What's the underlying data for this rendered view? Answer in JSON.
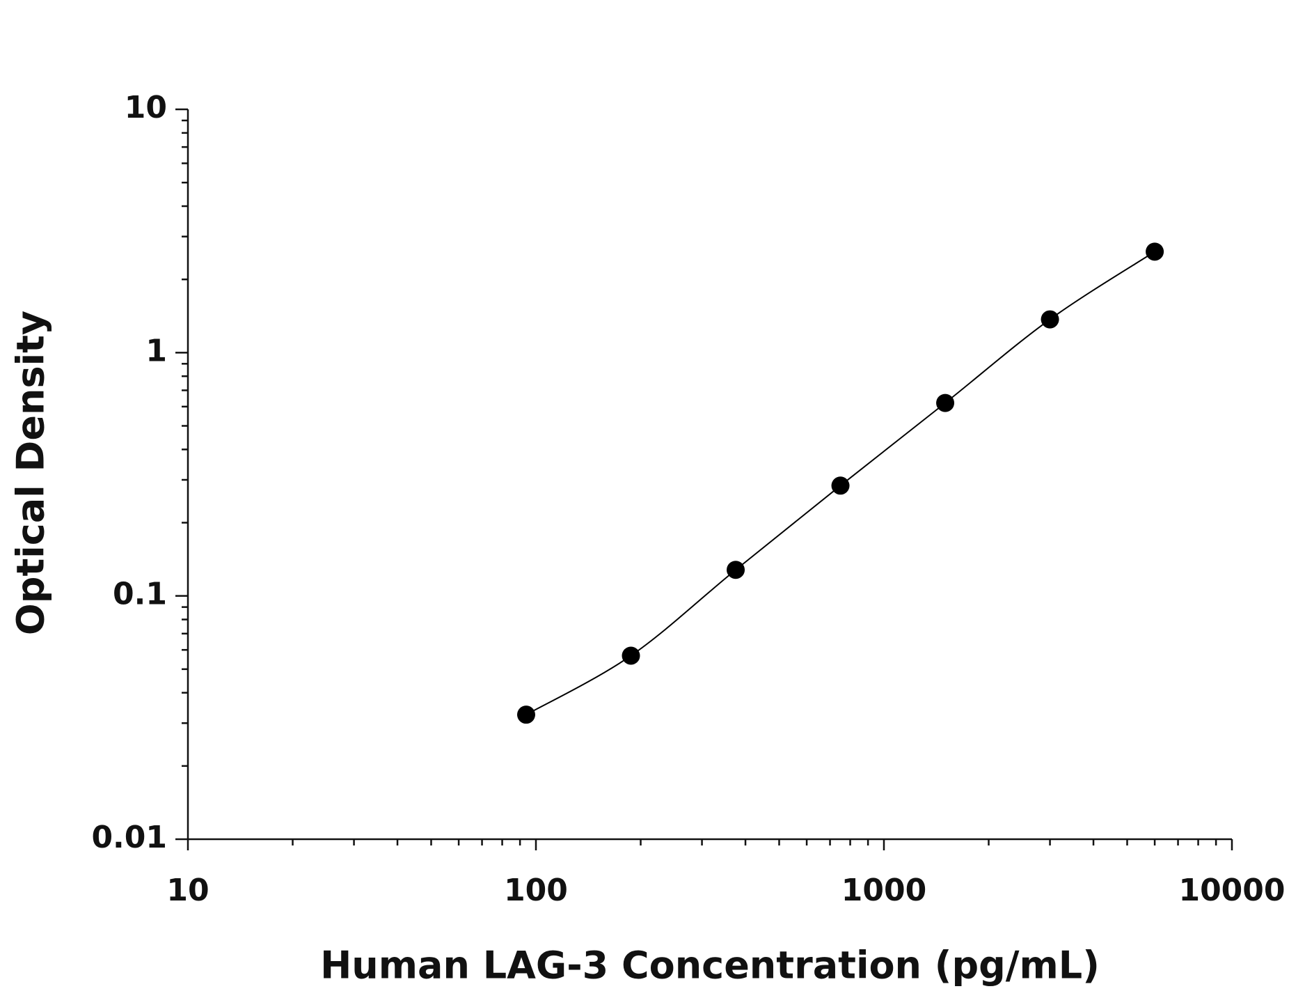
{
  "chart_data": {
    "type": "scatter",
    "x_label": "Human LAG-3 Concentration (pg/mL)",
    "y_label": "Optical Density",
    "x": [
      93.75,
      187.5,
      375,
      750,
      1500,
      3000,
      6000
    ],
    "series": [
      {
        "color": "#000000",
        "values": [
          0.0325,
          0.0568,
          0.128,
          0.284,
          0.621,
          1.37,
          2.6
        ]
      }
    ],
    "xlim": [
      10,
      10000
    ],
    "xticks": [
      10,
      100,
      1000,
      10000
    ],
    "ylim": [
      0.01,
      10
    ],
    "yticks": [
      0.01,
      0.1,
      1,
      10
    ],
    "xscale": "log",
    "yscale": "log",
    "grid": false
  }
}
